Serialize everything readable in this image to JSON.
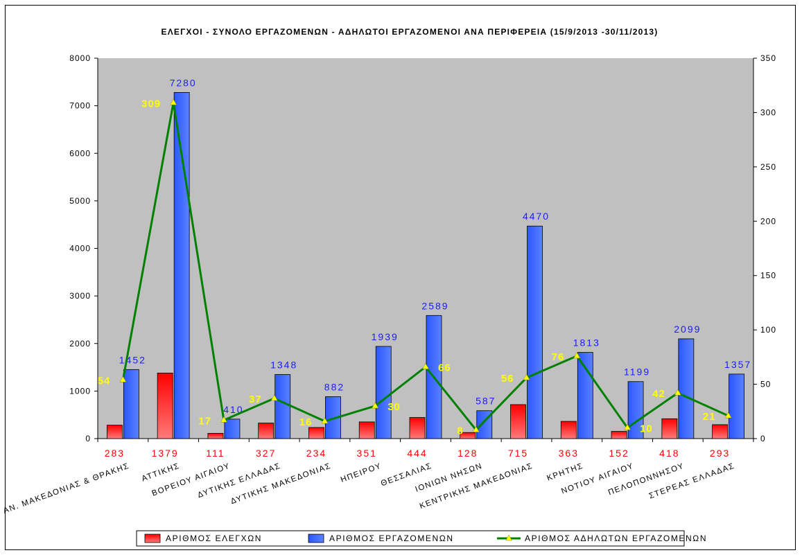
{
  "chart_data": {
    "type": "bar",
    "title": "ΕΛΕΓΧΟΙ - ΣΥΝΟΛΟ ΕΡΓΑΖΟΜΕΝΩΝ - ΑΔΗΛΩΤΟΙ ΕΡΓΑΖΟΜΕΝΟΙ ΑΝΑ ΠΕΡΙΦΕΡΕΙΑ (15/9/2013 -30/11/2013)",
    "categories": [
      "ΑΝ. ΜΑΚΕΔΟΝΙΑΣ & ΘΡΑΚΗΣ",
      "ΑΤΤΙΚΗΣ",
      "ΒΟΡΕΙΟΥ ΑΙΓΑΙΟΥ",
      "ΔΥΤΙΚΗΣ ΕΛΛΑΔΑΣ",
      "ΔΥΤΙΚΗΣ ΜΑΚΕΔΟΝΙΑΣ",
      "ΗΠΕΙΡΟΥ",
      "ΘΕΣΣΑΛΙΑΣ",
      "ΙΟΝΙΩΝ ΝΗΣΩΝ",
      "ΚΕΝΤΡΙΚΗΣ ΜΑΚΕΔΟΝΙΑΣ",
      "ΚΡΗΤΗΣ",
      "ΝΟΤΙΟΥ ΑΙΓΑΙΟΥ",
      "ΠΕΛΟΠΟΝΝΗΣΟΥ",
      "ΣΤΕΡΕΑΣ ΕΛΛΑΔΑΣ"
    ],
    "series": [
      {
        "name": "ΑΡΙΘΜΟΣ ΕΛΕΓΧΩΝ",
        "axis": "left",
        "kind": "bar",
        "color": "#ff2a2a",
        "values": [
          283,
          1379,
          111,
          327,
          234,
          351,
          444,
          128,
          715,
          363,
          152,
          418,
          293
        ]
      },
      {
        "name": "ΑΡΙΘΜΟΣ ΕΡΓΑΖΟΜΕΝΩΝ",
        "axis": "left",
        "kind": "bar",
        "color": "#3366ff",
        "values": [
          1452,
          7280,
          410,
          1348,
          882,
          1939,
          2589,
          587,
          4470,
          1813,
          1199,
          2099,
          1357
        ]
      },
      {
        "name": "ΑΡΙΘΜΟΣ ΑΔΗΛΩΤΩΝ ΕΡΓΑΖΟΜΕΝΩΝ",
        "axis": "right",
        "kind": "line",
        "color": "#008000",
        "marker_color": "#ffff00",
        "values": [
          54,
          309,
          17,
          37,
          16,
          30,
          66,
          8,
          56,
          76,
          10,
          42,
          21
        ]
      }
    ],
    "yaxis_left": {
      "min": 0,
      "max": 8000,
      "step": 1000,
      "ticks": [
        "0",
        "1000",
        "2000",
        "3000",
        "4000",
        "5000",
        "6000",
        "7000",
        "8000"
      ]
    },
    "yaxis_right": {
      "min": 0,
      "max": 350,
      "step": 50,
      "ticks": [
        "0",
        "50",
        "100",
        "150",
        "200",
        "250",
        "300",
        "350"
      ]
    },
    "grid": false,
    "plot_background": "#c0c0c0",
    "legend_position": "bottom"
  }
}
